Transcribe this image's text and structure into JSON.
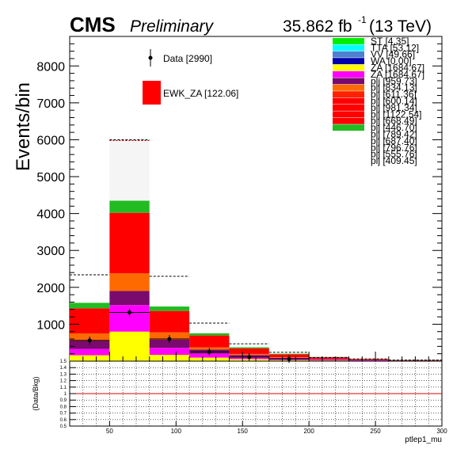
{
  "header": {
    "cms": "CMS",
    "preliminary": "Preliminary",
    "lumi_value": "35.862 fb",
    "lumi_exp": "-1",
    "lumi_energy": "(13 TeV)"
  },
  "legend_left": {
    "data_label": "Data [2990]",
    "signal_label": "EWK_ZA [122.06]",
    "signal_color": "#ff0000"
  },
  "legend_right": [
    {
      "label": "ST [4.35]",
      "color": "#00ee00"
    },
    {
      "label": "TTA [53.12]",
      "color": "#00ffff"
    },
    {
      "label": "VV [49.66]",
      "color": "#4f7fd0"
    },
    {
      "label": "WA [0.00]",
      "color": "#0000aa"
    },
    {
      "label": "ZA [1684.67]",
      "color": "#ffff00"
    },
    {
      "label": "ZA [1684.67]",
      "color": "#ff00ff"
    },
    {
      "label": "plj [959.73]",
      "color": "#7a0a6e"
    },
    {
      "label": "plj [834.13]",
      "color": "#ff6a00"
    },
    {
      "label": "plj [611.36]",
      "color": "#ff2200"
    },
    {
      "label": "plj [600.14]",
      "color": "#ff0000"
    },
    {
      "label": "plj [981.34]",
      "color": "#ff0000"
    },
    {
      "label": "plj [1122.54]",
      "color": "#ff0000"
    },
    {
      "label": "plj [668.49]",
      "color": "#ff0000"
    },
    {
      "label": "plj [446.70]",
      "color": "#22bb22"
    },
    {
      "label": "plj [789.42]",
      "color": "#ffffff"
    },
    {
      "label": "plj [687.40]",
      "color": "#ffffff"
    },
    {
      "label": "plj [796.76]",
      "color": "#ffffff"
    },
    {
      "label": "plj [555.76]",
      "color": "#ffffff"
    },
    {
      "label": "plj [409.45]",
      "color": "#ffffff"
    }
  ],
  "chart_data": {
    "type": "bar",
    "stacked": true,
    "ylabel": "Events/bin",
    "ylim": [
      0,
      8800
    ],
    "xlim": [
      20,
      300
    ],
    "bin_edges": [
      20,
      50,
      80,
      110,
      140,
      170,
      200,
      230,
      260,
      300
    ],
    "yticks": [
      1000,
      2000,
      3000,
      4000,
      5000,
      6000,
      7000,
      8000
    ],
    "series": [
      {
        "color": "#ffff00",
        "values": [
          160,
          800,
          170,
          95,
          55,
          30,
          20,
          12,
          6
        ]
      },
      {
        "color": "#ff00ff",
        "values": [
          170,
          720,
          190,
          110,
          55,
          30,
          18,
          10,
          5
        ]
      },
      {
        "color": "#7a0a6e",
        "values": [
          220,
          380,
          220,
          110,
          55,
          30,
          18,
          10,
          5
        ]
      },
      {
        "color": "#ff6a00",
        "values": [
          200,
          480,
          200,
          60,
          30,
          15,
          8,
          4,
          2
        ]
      },
      {
        "color": "#ff0000",
        "values": [
          680,
          1640,
          580,
          320,
          150,
          80,
          40,
          20,
          10
        ]
      },
      {
        "color": "#22bb22",
        "values": [
          150,
          330,
          120,
          60,
          30,
          15,
          8,
          4,
          2
        ]
      },
      {
        "color": "#f5f5f5",
        "values": [
          0,
          1670,
          0,
          0,
          0,
          0,
          0,
          0,
          0
        ]
      }
    ],
    "uncertainty_tops": [
      2340,
      6000,
      2300,
      1030,
      470,
      240,
      100,
      60,
      30
    ],
    "data_points": [
      {
        "x": 35,
        "y": 560
      },
      {
        "x": 65,
        "y": 1320
      },
      {
        "x": 95,
        "y": 600
      },
      {
        "x": 125,
        "y": 250
      },
      {
        "x": 155,
        "y": 110
      },
      {
        "x": 185,
        "y": 60
      }
    ],
    "ratio_panel": {
      "ylabel": "(Data/Bkg)",
      "xlabel": "ptlep1_mu",
      "ylim": [
        0.5,
        1.5
      ],
      "yticks": [
        "0.5",
        "0.6",
        "0.7",
        "0.8",
        "0.9",
        "1",
        "1.1",
        "1.2",
        "1.3",
        "1.4",
        "1.5"
      ],
      "xticks": [
        "50",
        "100",
        "150",
        "200",
        "250",
        "300"
      ],
      "xtick_values": [
        50,
        100,
        150,
        200,
        250,
        300
      ],
      "reference_line": 1.0
    }
  }
}
